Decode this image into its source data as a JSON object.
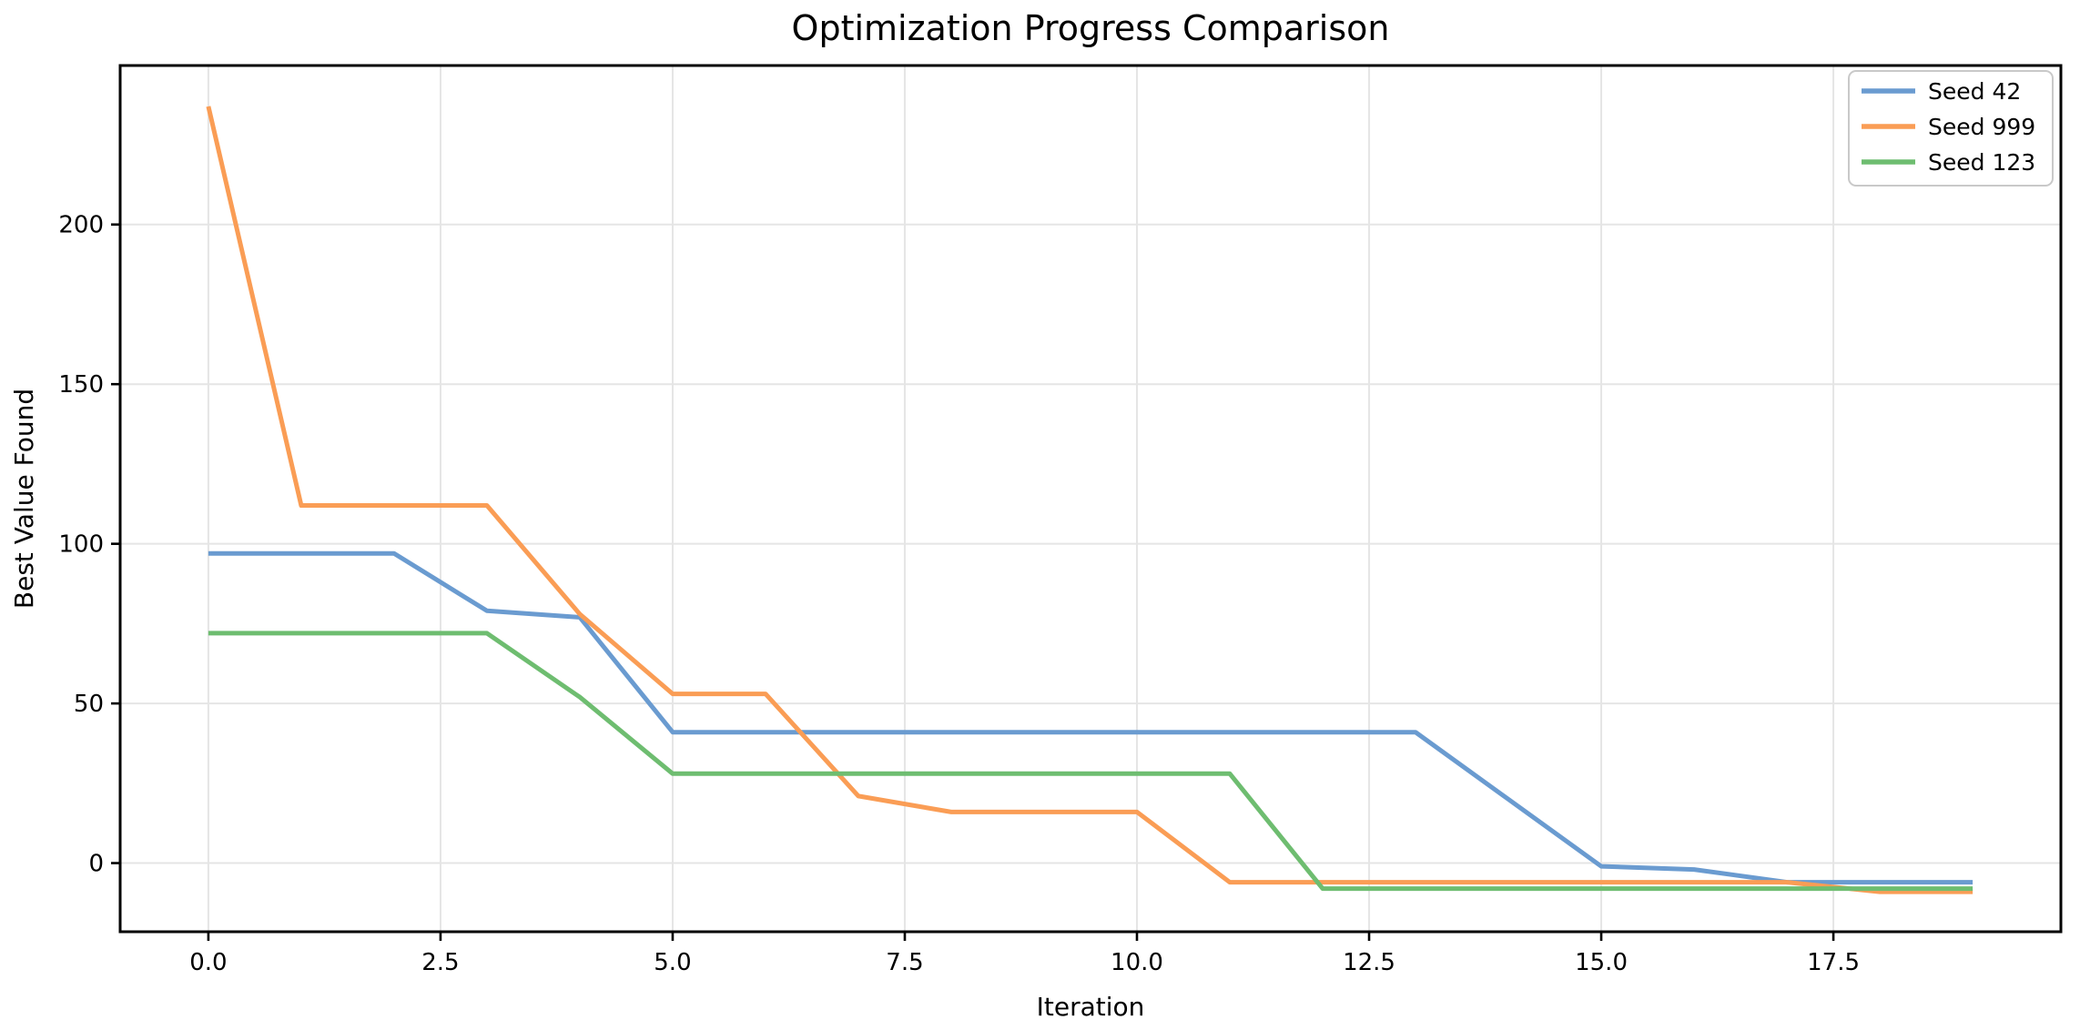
{
  "chart_data": {
    "type": "line",
    "title": "Optimization Progress Comparison",
    "xlabel": "Iteration",
    "ylabel": "Best Value Found",
    "x": [
      0,
      1,
      2,
      3,
      4,
      5,
      6,
      7,
      8,
      9,
      10,
      11,
      12,
      13,
      14,
      15,
      16,
      17,
      18,
      19
    ],
    "series": [
      {
        "name": "Seed 42",
        "color": "#6A9BD0",
        "values": [
          97,
          97,
          97,
          79,
          77,
          41,
          41,
          41,
          41,
          41,
          41,
          41,
          41,
          41,
          20,
          -1,
          -2,
          -6,
          -6,
          -6
        ]
      },
      {
        "name": "Seed 999",
        "color": "#FA9D55",
        "values": [
          237,
          112,
          112,
          112,
          78,
          53,
          53,
          21,
          16,
          16,
          16,
          -6,
          -6,
          -6,
          -6,
          -6,
          -6,
          -6,
          -9,
          -9
        ]
      },
      {
        "name": "Seed 123",
        "color": "#6EBD70",
        "values": [
          72,
          72,
          72,
          72,
          52,
          28,
          28,
          28,
          28,
          28,
          28,
          28,
          -8,
          -8,
          -8,
          -8,
          -8,
          -8,
          -8,
          -8
        ]
      }
    ],
    "xticks": {
      "values": [
        0,
        2.5,
        5,
        7.5,
        10,
        12.5,
        15,
        17.5
      ],
      "labels": [
        "0.0",
        "2.5",
        "5.0",
        "7.5",
        "10.0",
        "12.5",
        "15.0",
        "17.5"
      ]
    },
    "yticks": {
      "values": [
        0,
        50,
        100,
        150,
        200
      ],
      "labels": [
        "0",
        "50",
        "100",
        "150",
        "200"
      ]
    },
    "xlim": [
      -0.95,
      19.95
    ],
    "ylim": [
      -21.5,
      249.8
    ],
    "grid": true,
    "legend": {
      "position": "upper right"
    },
    "colors": {
      "grid": "#e5e5e5",
      "spine": "#000000",
      "text": "#000000",
      "background": "#ffffff"
    }
  }
}
